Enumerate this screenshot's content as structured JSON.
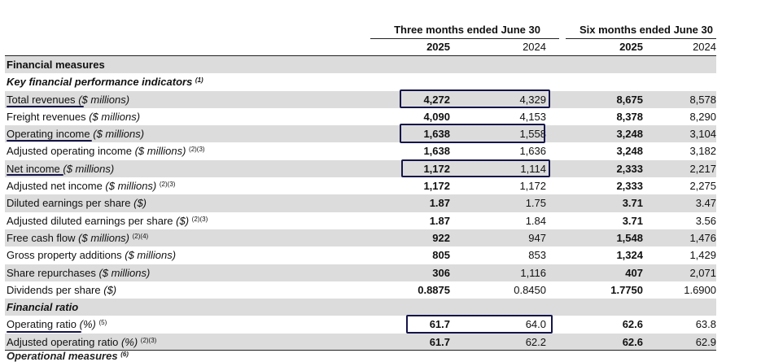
{
  "header": {
    "period_three": "Three months ended June 30",
    "period_six": "Six months ended June 30",
    "years": [
      "2025",
      "2024",
      "2025",
      "2024"
    ]
  },
  "rows": [
    {
      "type": "section",
      "label": "Financial measures"
    },
    {
      "type": "subsection",
      "label": "Key financial performance indicators",
      "sup": "(1)"
    },
    {
      "label": "Total revenues",
      "unit": "($ millions)",
      "sup": "",
      "values": [
        "4,272",
        "4,329",
        "8,675",
        "8,578"
      ]
    },
    {
      "label": "Freight revenues",
      "unit": "($ millions)",
      "sup": "",
      "values": [
        "4,090",
        "4,153",
        "8,378",
        "8,290"
      ]
    },
    {
      "label": "Operating income",
      "unit": "($ millions)",
      "sup": "",
      "values": [
        "1,638",
        "1,558",
        "3,248",
        "3,104"
      ]
    },
    {
      "label": "Adjusted operating income",
      "unit": "($ millions)",
      "sup": "(2)(3)",
      "values": [
        "1,638",
        "1,636",
        "3,248",
        "3,182"
      ]
    },
    {
      "label": "Net income",
      "unit": "($ millions)",
      "sup": "",
      "values": [
        "1,172",
        "1,114",
        "2,333",
        "2,217"
      ]
    },
    {
      "label": "Adjusted net income",
      "unit": "($ millions)",
      "sup": "(2)(3)",
      "values": [
        "1,172",
        "1,172",
        "2,333",
        "2,275"
      ]
    },
    {
      "label": "Diluted earnings per share",
      "unit": "($)",
      "sup": "",
      "values": [
        "1.87",
        "1.75",
        "3.71",
        "3.47"
      ]
    },
    {
      "label": "Adjusted diluted earnings per share",
      "unit": "($)",
      "sup": "(2)(3)",
      "values": [
        "1.87",
        "1.84",
        "3.71",
        "3.56"
      ]
    },
    {
      "label": "Free cash flow",
      "unit": "($ millions)",
      "sup": "(2)(4)",
      "values": [
        "922",
        "947",
        "1,548",
        "1,476"
      ]
    },
    {
      "label": "Gross property additions",
      "unit": "($ millions)",
      "sup": "",
      "values": [
        "805",
        "853",
        "1,324",
        "1,429"
      ]
    },
    {
      "label": "Share repurchases",
      "unit": "($ millions)",
      "sup": "",
      "values": [
        "306",
        "1,116",
        "407",
        "2,071"
      ]
    },
    {
      "label": "Dividends per share",
      "unit": "($)",
      "sup": "",
      "values": [
        "0.8875",
        "0.8450",
        "1.7750",
        "1.6900"
      ]
    },
    {
      "type": "subsection",
      "label": "Financial ratio",
      "sup": ""
    },
    {
      "label": "Operating ratio",
      "unit": "(%)",
      "sup": "(5)",
      "values": [
        "61.7",
        "64.0",
        "62.6",
        "63.8"
      ]
    },
    {
      "label": "Adjusted operating ratio",
      "unit": "(%)",
      "sup": "(2)(3)",
      "values": [
        "61.7",
        "62.2",
        "62.6",
        "62.9"
      ]
    }
  ],
  "cut_off_text": "Operational measures",
  "cut_off_sup": "(6)",
  "annotation_color": "#15154a"
}
